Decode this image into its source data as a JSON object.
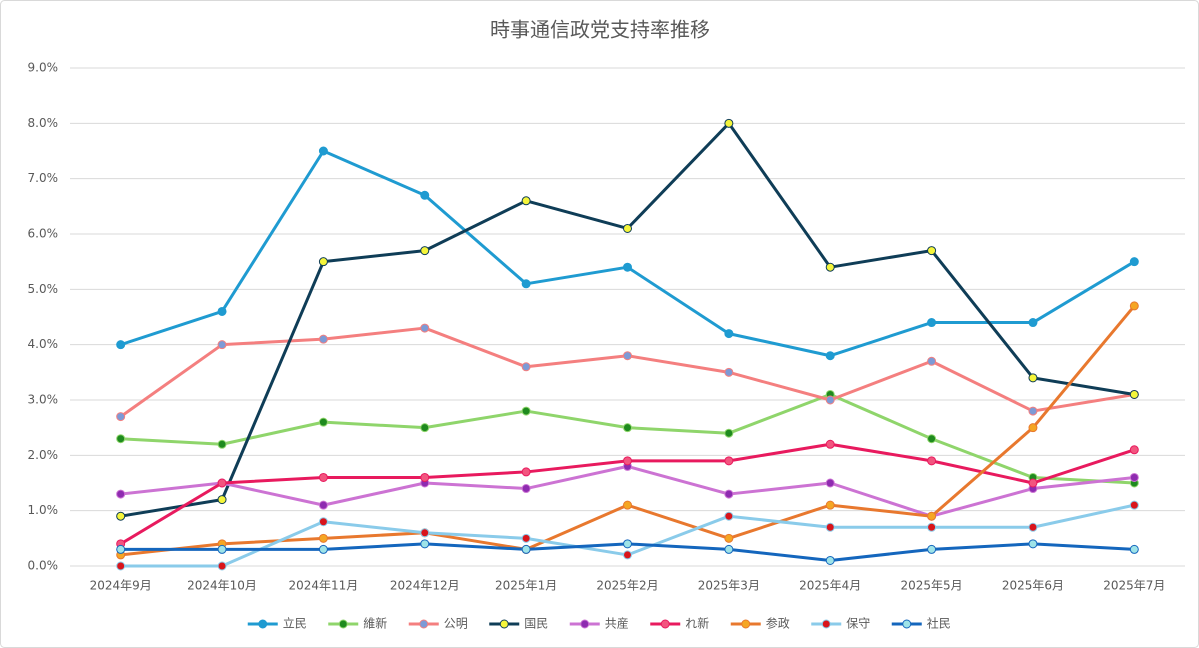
{
  "chart_data": {
    "type": "line",
    "title": "時事通信政党支持率推移",
    "categories": [
      "2024年9月",
      "2024年10月",
      "2024年11月",
      "2024年12月",
      "2025年1月",
      "2025年2月",
      "2025年3月",
      "2025年4月",
      "2025年5月",
      "2025年6月",
      "2025年7月"
    ],
    "ylim": [
      0,
      9
    ],
    "yticks": [
      {
        "value": 0,
        "label": "0.0%"
      },
      {
        "value": 1,
        "label": "1.0%"
      },
      {
        "value": 2,
        "label": "2.0%"
      },
      {
        "value": 3,
        "label": "3.0%"
      },
      {
        "value": 4,
        "label": "4.0%"
      },
      {
        "value": 5,
        "label": "5.0%"
      },
      {
        "value": 6,
        "label": "6.0%"
      },
      {
        "value": 7,
        "label": "7.0%"
      },
      {
        "value": 8,
        "label": "8.0%"
      },
      {
        "value": 9,
        "label": "9.0%"
      }
    ],
    "grid": true,
    "legend": "bottom",
    "series": [
      {
        "name": "立民",
        "color": "#1f9bd1",
        "marker_color": "#1f9bd1",
        "values": [
          4.0,
          4.6,
          7.5,
          6.7,
          5.1,
          5.4,
          4.2,
          3.8,
          4.4,
          4.4,
          5.5
        ]
      },
      {
        "name": "維新",
        "color": "#8fd56b",
        "marker_color": "#1e8a1e",
        "values": [
          2.3,
          2.2,
          2.6,
          2.5,
          2.8,
          2.5,
          2.4,
          3.1,
          2.3,
          1.6,
          1.5
        ]
      },
      {
        "name": "公明",
        "color": "#f47f7f",
        "marker_color": "#7d9ad6",
        "values": [
          2.7,
          4.0,
          4.1,
          4.3,
          3.6,
          3.8,
          3.5,
          3.0,
          3.7,
          2.8,
          3.1
        ]
      },
      {
        "name": "国民",
        "color": "#0f3d57",
        "marker_color": "#f5f53a",
        "values": [
          0.9,
          1.2,
          5.5,
          5.7,
          6.6,
          6.1,
          8.0,
          5.4,
          5.7,
          3.4,
          3.1
        ]
      },
      {
        "name": "共産",
        "color": "#cc73d3",
        "marker_color": "#8e2bb0",
        "values": [
          1.3,
          1.5,
          1.1,
          1.5,
          1.4,
          1.8,
          1.3,
          1.5,
          0.9,
          1.4,
          1.6
        ]
      },
      {
        "name": "れ新",
        "color": "#e81a5e",
        "marker_color": "#f2557f",
        "values": [
          0.4,
          1.5,
          1.6,
          1.6,
          1.7,
          1.9,
          1.9,
          2.2,
          1.9,
          1.5,
          2.1
        ]
      },
      {
        "name": "参政",
        "color": "#e8782e",
        "marker_color": "#f5a623",
        "values": [
          0.2,
          0.4,
          0.5,
          0.6,
          0.3,
          1.1,
          0.5,
          1.1,
          0.9,
          2.5,
          4.7
        ]
      },
      {
        "name": "保守",
        "color": "#8acbea",
        "marker_color": "#d9141b",
        "values": [
          0.0,
          0.0,
          0.8,
          0.6,
          0.5,
          0.2,
          0.9,
          0.7,
          0.7,
          0.7,
          1.1
        ]
      },
      {
        "name": "社民",
        "color": "#1466bd",
        "marker_color": "#9ee3e8",
        "values": [
          0.3,
          0.3,
          0.3,
          0.4,
          0.3,
          0.4,
          0.3,
          0.1,
          0.3,
          0.4,
          0.3
        ]
      }
    ]
  }
}
